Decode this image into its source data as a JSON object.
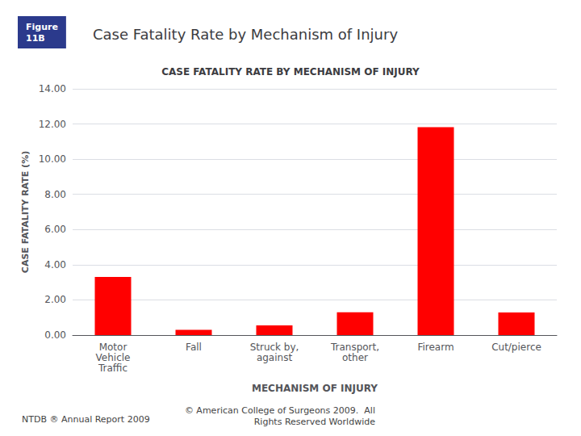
{
  "chart_data": {
    "type": "bar",
    "title": "Case Fatality Rate by Mechanism of Injury",
    "subtitle": "CASE FATALITY RATE BY MECHANISM OF INJURY",
    "annotations": [
      "Figure\n11B",
      "NTDB ® Annual Report 2009",
      "© American College of Surgeons 2009.  All\nRights Reserved Worldwide"
    ],
    "xlabel": "MECHANISM OF INJURY",
    "ylabel": "CASE FATALITY RATE (%)",
    "categories": [
      "Motor\nVehicle\nTraffic",
      "Fall",
      "Struck by,\nagainst",
      "Transport,\nother",
      "Firearm",
      "Cut/pierce"
    ],
    "values": [
      3.3,
      0.3,
      0.55,
      1.3,
      11.82,
      1.28
    ],
    "color": "#FF0000",
    "ylim": [
      0,
      14.0
    ],
    "yticks": [
      {
        "value": 0.0,
        "label": "0.00"
      },
      {
        "value": 2.0,
        "label": "2.00"
      },
      {
        "value": 4.0,
        "label": "4.00"
      },
      {
        "value": 6.0,
        "label": "6.00"
      },
      {
        "value": 8.0,
        "label": "8.00"
      },
      {
        "value": 10.0,
        "label": "10.00"
      },
      {
        "value": 12.0,
        "label": "12.00"
      },
      {
        "value": 14.0,
        "label": "14.00"
      }
    ],
    "grid": true
  }
}
